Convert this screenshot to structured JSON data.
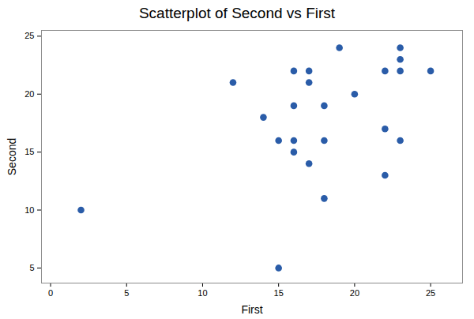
{
  "chart_data": {
    "type": "scatter",
    "title": "Scatterplot of Second vs First",
    "x_label": "First",
    "y_label": "Second",
    "x": [
      2,
      12,
      14,
      15,
      15,
      16,
      16,
      16,
      16,
      17,
      17,
      17,
      18,
      18,
      18,
      19,
      20,
      22,
      22,
      22,
      23,
      23,
      23,
      23,
      25
    ],
    "values": [
      10,
      21,
      18,
      16,
      5,
      22,
      19,
      16,
      15,
      22,
      21,
      14,
      19,
      16,
      11,
      24,
      20,
      22,
      17,
      13,
      24,
      23,
      22,
      16,
      22
    ],
    "color": "#2a5ca8",
    "marker": "circle",
    "xlim": [
      -0.6,
      27.1
    ],
    "xticks": [
      0,
      5,
      10,
      15,
      20,
      25
    ],
    "ylim": [
      3.7,
      25.5
    ],
    "yticks": [
      5,
      10,
      15,
      20,
      25
    ],
    "grid": false
  }
}
